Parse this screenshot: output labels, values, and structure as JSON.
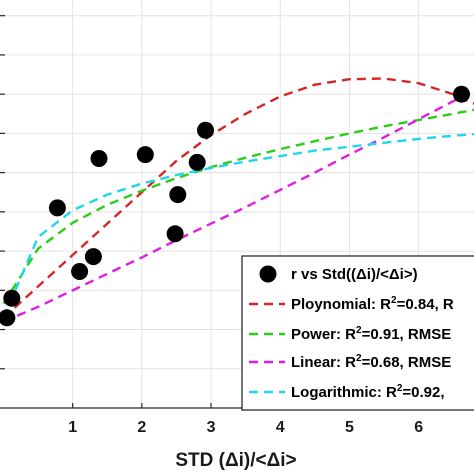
{
  "chart_data": {
    "type": "scatter",
    "xlabel": "STD (Δi)/<Δi>",
    "ylabel": "",
    "title": "",
    "xlim": [
      -0.05,
      6.8
    ],
    "ylim": [
      0.1,
      0.62
    ],
    "x_ticks": [
      1,
      2,
      3,
      4,
      5,
      6
    ],
    "x_tick_labels": [
      "1",
      "2",
      "3",
      "4",
      "5",
      "6"
    ],
    "y_ticks": [
      0.15,
      0.2,
      0.25,
      0.3,
      0.35,
      0.4,
      0.45,
      0.5,
      0.55,
      0.6
    ],
    "grid": true,
    "legend_position": "bottom-right",
    "scatter": {
      "name": "r vs Std((Δi)/<Δi>)",
      "color": "#000000",
      "x": [
        0.05,
        0.12,
        0.78,
        1.1,
        1.3,
        1.38,
        2.05,
        2.48,
        2.52,
        2.8,
        2.92,
        6.62
      ],
      "y": [
        0.215,
        0.24,
        0.355,
        0.274,
        0.293,
        0.418,
        0.423,
        0.322,
        0.372,
        0.413,
        0.454,
        0.5
      ]
    },
    "fits": [
      {
        "name": "Ploynomial",
        "r2_label": "Ploynomial: R",
        "r2_sup": "2",
        "r2_value": "=0.84, R",
        "color": "#d62728",
        "x": [
          0.0,
          0.5,
          1.0,
          1.5,
          2.0,
          2.5,
          3.0,
          3.5,
          4.0,
          4.5,
          5.0,
          5.5,
          6.0,
          6.5,
          6.8
        ],
        "y": [
          0.215,
          0.255,
          0.295,
          0.335,
          0.375,
          0.415,
          0.448,
          0.475,
          0.497,
          0.512,
          0.519,
          0.52,
          0.514,
          0.5,
          0.488
        ]
      },
      {
        "name": "Power",
        "r2_label": "Power: R",
        "r2_sup": "2",
        "r2_value": "=0.91, RMSE",
        "color": "#2ecc1a",
        "x": [
          0.0,
          0.5,
          1.0,
          1.5,
          2.0,
          2.5,
          3.0,
          3.5,
          4.0,
          4.5,
          5.0,
          5.5,
          6.0,
          6.5,
          6.8
        ],
        "y": [
          0.233,
          0.303,
          0.336,
          0.359,
          0.377,
          0.393,
          0.407,
          0.419,
          0.43,
          0.44,
          0.45,
          0.459,
          0.467,
          0.475,
          0.48
        ]
      },
      {
        "name": "Linear",
        "r2_label": "Linear: R",
        "r2_sup": "2",
        "r2_value": "=0.68, RMSE",
        "color": "#e01ee0",
        "x": [
          0.0,
          0.5,
          1.0,
          1.5,
          2.0,
          2.5,
          3.0,
          3.5,
          4.0,
          4.5,
          5.0,
          5.5,
          6.0,
          6.5,
          6.8
        ],
        "y": [
          0.21,
          0.229,
          0.25,
          0.271,
          0.292,
          0.314,
          0.335,
          0.356,
          0.378,
          0.4,
          0.423,
          0.445,
          0.468,
          0.491,
          0.505
        ]
      },
      {
        "name": "Logarithmic",
        "r2_label": "Logarithmic: R",
        "r2_sup": "2",
        "r2_value": "=0.92,",
        "color": "#1ed7ee",
        "x": [
          0.0,
          0.5,
          1.0,
          1.5,
          2.0,
          2.5,
          3.0,
          3.5,
          4.0,
          4.5,
          5.0,
          5.5,
          6.0,
          6.5,
          6.8
        ],
        "y": [
          0.215,
          0.318,
          0.352,
          0.372,
          0.386,
          0.397,
          0.406,
          0.414,
          0.421,
          0.428,
          0.433,
          0.438,
          0.443,
          0.447,
          0.449
        ]
      }
    ]
  }
}
